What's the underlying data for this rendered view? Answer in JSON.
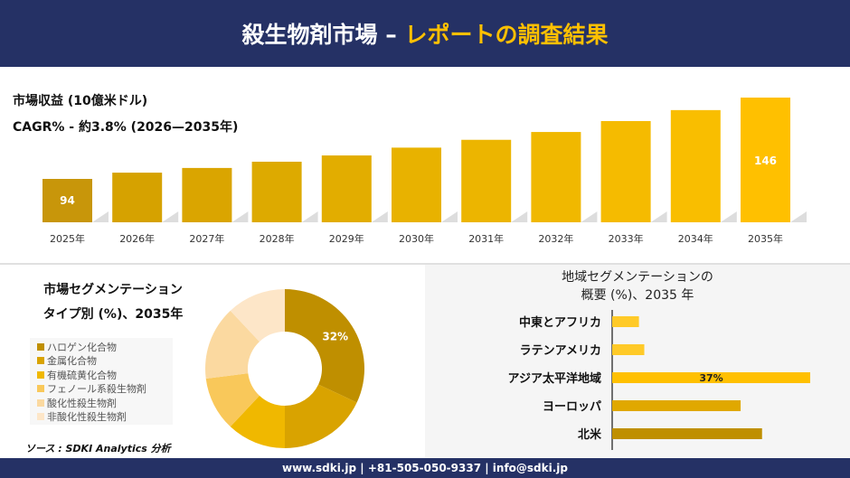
{
  "header": {
    "title_main": "殺生物剤市場 –",
    "title_accent": "レポートの調査結果"
  },
  "colors": {
    "header": "#253165",
    "accent": "#ffc000"
  },
  "chart_data": [
    {
      "type": "bar",
      "title": "市場収益 (10億米ドル)",
      "subtitle": "CAGR% - 約3.8% (2026—2035年)",
      "categories": [
        "2025年",
        "2026年",
        "2027年",
        "2028年",
        "2029年",
        "2030年",
        "2031年",
        "2032年",
        "2033年",
        "2034年",
        "2035年"
      ],
      "values": [
        94,
        98,
        101,
        105,
        109,
        114,
        119,
        124,
        131,
        138,
        146
      ],
      "data_labels": {
        "0": "94",
        "10": "146"
      }
    },
    {
      "type": "pie",
      "title_line1": "市場セグメンテーション",
      "title_line2": "タイプ別 (%)、2035年",
      "categories": [
        "ハロゲン化合物",
        "金属化合物",
        "有機硫黄化合物",
        "フェノール系殺生物剤",
        "酸化性殺生物剤",
        "非酸化性殺生物剤"
      ],
      "values": [
        32,
        18,
        12,
        11,
        15,
        12
      ],
      "colors": [
        "#bf8f00",
        "#d9a300",
        "#f0b800",
        "#f9c85a",
        "#fbd9a0",
        "#fde6c8"
      ],
      "data_labels": {
        "0": "32%"
      }
    },
    {
      "type": "bar",
      "orientation": "horizontal",
      "title_line1": "地域セグメンテーションの",
      "title_line2": "概要 (%)、2035 年",
      "categories": [
        "中東とアフリカ",
        "ラテンアメリカ",
        "アジア太平洋地域",
        "ヨーロッパ",
        "北米"
      ],
      "values": [
        5,
        6,
        37,
        24,
        28
      ],
      "colors": [
        "#ffca28",
        "#ffca28",
        "#ffc000",
        "#e0a800",
        "#bf8f00"
      ],
      "data_labels": {
        "2": "37%"
      }
    }
  ],
  "source": "ソース : SDKI Analytics 分析",
  "footer": "www.sdki.jp | +81-505-050-9337 | info@sdki.jp"
}
